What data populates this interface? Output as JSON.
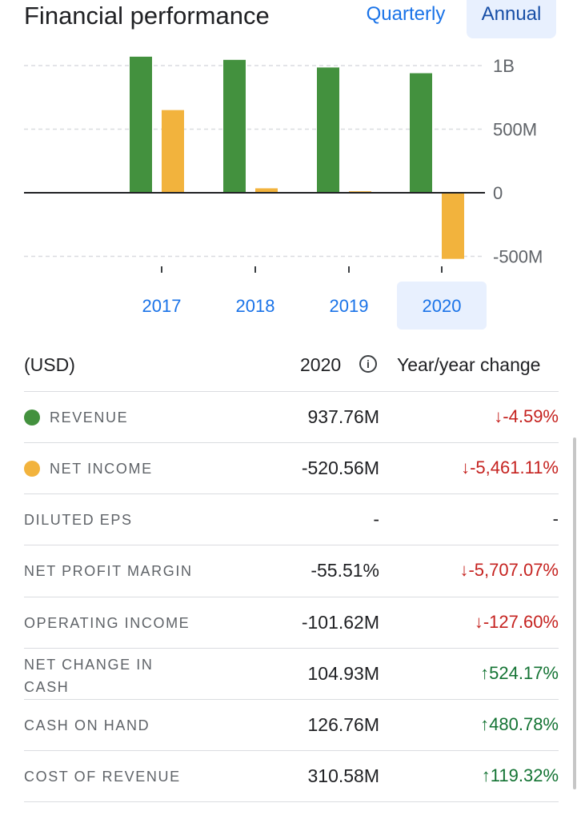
{
  "header": {
    "title": "Financial performance",
    "period_options": [
      "Quarterly",
      "Annual"
    ],
    "selected_period": "Annual"
  },
  "chart_data": {
    "type": "bar",
    "categories": [
      "2017",
      "2018",
      "2019",
      "2020"
    ],
    "selected_category": "2020",
    "series": [
      {
        "name": "Revenue",
        "color": "#43913e",
        "values": [
          1070000000,
          1045000000,
          985000000,
          940000000
        ]
      },
      {
        "name": "Net income",
        "color": "#f2b33d",
        "values": [
          650000000,
          35000000,
          12000000,
          -520000000
        ]
      }
    ],
    "ylim": [
      -500000000,
      1000000000
    ],
    "yticks": [
      {
        "value": 1000000000,
        "label": "1B"
      },
      {
        "value": 500000000,
        "label": "500M"
      },
      {
        "value": 0,
        "label": "0"
      },
      {
        "value": -500000000,
        "label": "-500M"
      }
    ],
    "grid": true
  },
  "table": {
    "currency": "(USD)",
    "year": "2020",
    "change_header": "Year/year change",
    "rows": [
      {
        "label": "REVENUE",
        "value": "937.76M",
        "change": "-4.59%",
        "direction": "down",
        "dot_color": "#43913e"
      },
      {
        "label": "NET INCOME",
        "value": "-520.56M",
        "change": "-5,461.11%",
        "direction": "down",
        "dot_color": "#f2b33d"
      },
      {
        "label": "DILUTED EPS",
        "value": "-",
        "change": "-",
        "direction": "none"
      },
      {
        "label": "NET PROFIT MARGIN",
        "value": "-55.51%",
        "change": "-5,707.07%",
        "direction": "down"
      },
      {
        "label": "OPERATING INCOME",
        "value": "-101.62M",
        "change": "-127.60%",
        "direction": "down"
      },
      {
        "label": "NET CHANGE IN",
        "label2": "CASH",
        "value": "104.93M",
        "change": "524.17%",
        "direction": "up"
      },
      {
        "label": "CASH ON HAND",
        "value": "126.76M",
        "change": "480.78%",
        "direction": "up"
      },
      {
        "label": "COST OF REVENUE",
        "value": "310.58M",
        "change": "119.32%",
        "direction": "up"
      }
    ]
  }
}
